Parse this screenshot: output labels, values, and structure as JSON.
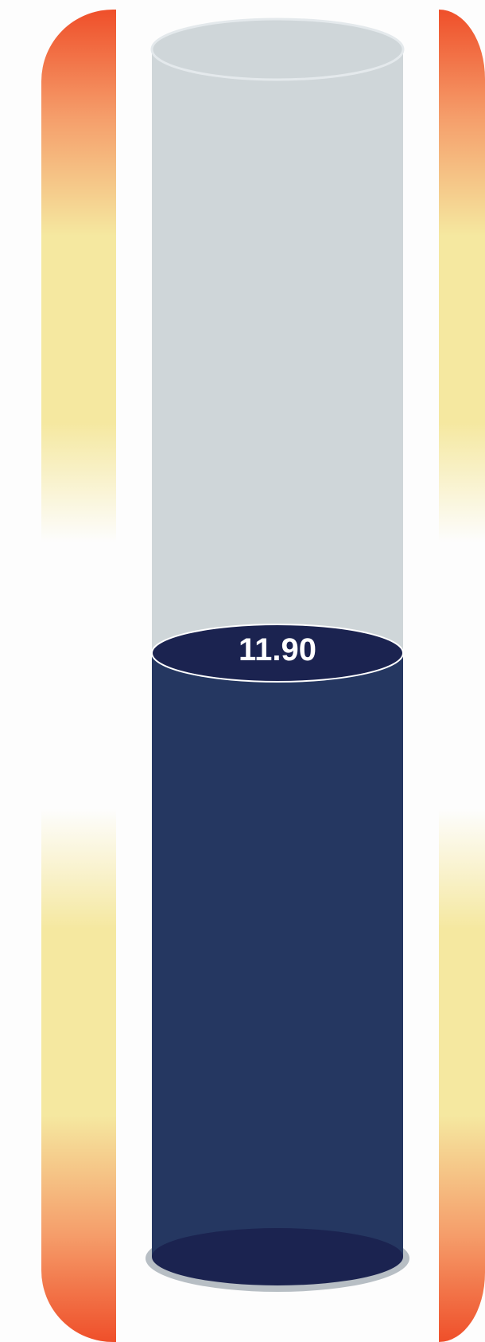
{
  "chart_data": {
    "type": "cylinder-gauge",
    "value": 11.9,
    "value_label": "11.90",
    "fill_fraction": 0.5,
    "colors": {
      "fill": "#253761",
      "fill_top": "#1b2350",
      "empty": "#cfd6d9",
      "base_shadow": "#b7bec4",
      "band_red": "#ef4f2a",
      "band_orange": "#f59d6a",
      "band_yellow": "#f5e8a0",
      "band_white": "#fdfdfd"
    }
  }
}
